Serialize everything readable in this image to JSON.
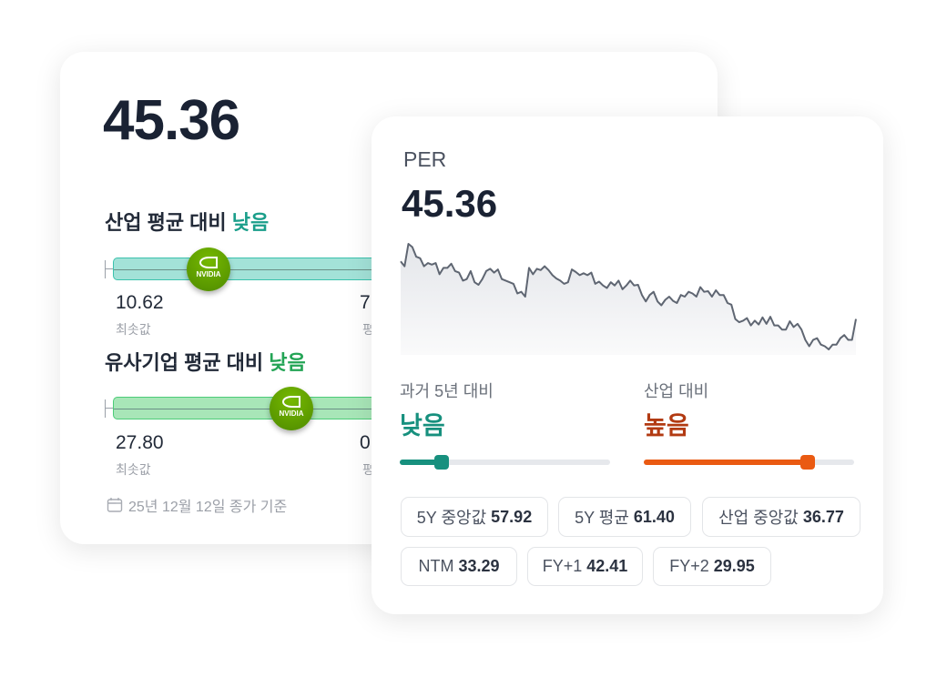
{
  "left_card": {
    "value": "45.36",
    "industry": {
      "label": "산업 평균 대비",
      "verdict": "낮음",
      "min_value": "10.62",
      "min_label": "최솟값",
      "avg_value_partial": "7",
      "avg_label_partial": "평",
      "color": "#1a9e8a"
    },
    "peers": {
      "label": "유사기업 평균 대비",
      "verdict": "낮음",
      "min_value": "27.80",
      "min_label": "최솟값",
      "avg_value_partial": "0",
      "avg_label_partial": "평",
      "color": "#23a455"
    },
    "logo_text": "NVIDIA",
    "date_note": "25년 12월 12일 종가 기준"
  },
  "right_card": {
    "metric": "PER",
    "value": "45.36",
    "compare_5y": {
      "label": "과거 5년 대비",
      "verdict": "낮음",
      "color": "#17907e",
      "level": 0.2
    },
    "compare_industry": {
      "label": "산업 대비",
      "verdict": "높음",
      "color": "#b23a12",
      "bar_color": "#ea5a12",
      "level": 0.78
    },
    "chips": [
      {
        "label": "5Y 중앙값",
        "value": "57.92"
      },
      {
        "label": "5Y 평균",
        "value": "61.40"
      },
      {
        "label": "산업 중앙값",
        "value": "36.77"
      },
      {
        "label": "NTM",
        "value": "33.29"
      },
      {
        "label": "FY+1",
        "value": "42.41"
      },
      {
        "label": "FY+2",
        "value": "29.95"
      }
    ]
  },
  "chart_data": {
    "type": "line",
    "title": "",
    "xlabel": "",
    "ylabel": "",
    "grid": false,
    "values": [
      315,
      300,
      370,
      360,
      330,
      325,
      300,
      310,
      305,
      310,
      275,
      295,
      295,
      308,
      285,
      280,
      255,
      260,
      285,
      250,
      242,
      260,
      285,
      292,
      280,
      290,
      260,
      255,
      250,
      245,
      215,
      220,
      205,
      295,
      275,
      292,
      288,
      300,
      288,
      272,
      262,
      255,
      245,
      250,
      290,
      282,
      272,
      278,
      272,
      280,
      245,
      252,
      240,
      232,
      250,
      240,
      255,
      228,
      240,
      255,
      240,
      242,
      210,
      190,
      210,
      220,
      190,
      178,
      195,
      205,
      192,
      185,
      210,
      205,
      220,
      215,
      205,
      235,
      220,
      222,
      205,
      225,
      210,
      210,
      185,
      180,
      135,
      125,
      130,
      138,
      115,
      130,
      118,
      140,
      120,
      142,
      115,
      115,
      102,
      102,
      128,
      110,
      120,
      102,
      70,
      50,
      70,
      75,
      55,
      50,
      40,
      55,
      55,
      75,
      85,
      70,
      70,
      135
    ]
  }
}
